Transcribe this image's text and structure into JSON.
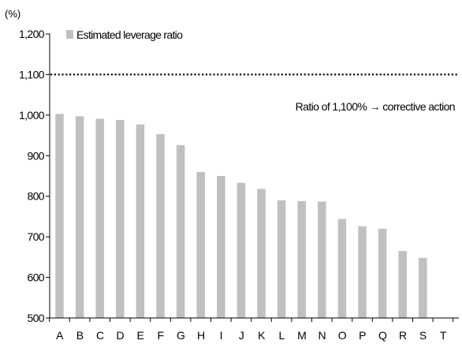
{
  "chart_data": {
    "type": "bar",
    "unit_label": "(%)",
    "categories": [
      "A",
      "B",
      "C",
      "D",
      "E",
      "F",
      "G",
      "H",
      "I",
      "J",
      "K",
      "L",
      "M",
      "N",
      "O",
      "P",
      "Q",
      "R",
      "S",
      "T"
    ],
    "series": [
      {
        "name": "Estimated leverage ratio",
        "color": "#c0c0c0",
        "values": [
          1003,
          997,
          991,
          988,
          977,
          953,
          926,
          860,
          850,
          833,
          818,
          790,
          788,
          787,
          744,
          726,
          720,
          665,
          648,
          null
        ]
      }
    ],
    "ylim": [
      500,
      1200
    ],
    "yticks": [
      500,
      600,
      700,
      800,
      900,
      1000,
      1100,
      1200
    ],
    "ytick_labels": [
      "500",
      "600",
      "700",
      "800",
      "900",
      "1,000",
      "1,100",
      "1,200"
    ],
    "reference_line": {
      "value": 1100,
      "style": "dotted",
      "color": "#000000"
    },
    "annotation": "Ratio of 1,100% → corrective action",
    "legend_position": "top-left",
    "grid": false
  }
}
